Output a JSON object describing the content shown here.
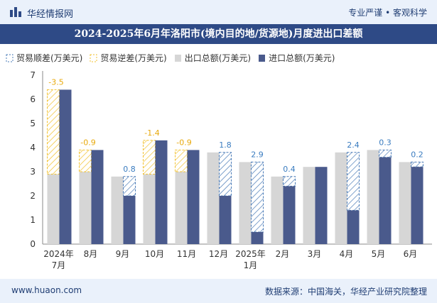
{
  "header": {
    "brand": "华经情报网",
    "tagline": "专业严谨 • 客观科学"
  },
  "title": "2024-2025年6月年洛阳市(境内目的地/货源地)月度进出口差额",
  "footer": {
    "site": "www.huaon.com",
    "source": "数据来源：中国海关，华经产业研究院整理"
  },
  "colors": {
    "export": "#d6d6d6",
    "import": "#4a5a8c",
    "surplus_border": "#4a7bb7",
    "deficit_border": "#f2c12e",
    "surplus_label": "#3a7cc0",
    "deficit_label": "#e8a90c",
    "accent": "#2e4a86"
  },
  "legend": {
    "surplus": "贸易顺差(万美元)",
    "deficit": "贸易逆差(万美元)",
    "export": "出口总额(万美元)",
    "import": "进口总额(万美元)"
  },
  "chart_data": {
    "type": "bar",
    "categories": [
      "2024年7月",
      "8月",
      "9月",
      "10月",
      "11月",
      "12月",
      "2025年1月",
      "2月",
      "3月",
      "4月",
      "5月",
      "6月"
    ],
    "series": [
      {
        "name": "出口总额(万美元)",
        "values": [
          2.9,
          3.0,
          2.8,
          2.9,
          3.0,
          3.8,
          3.4,
          2.8,
          3.2,
          3.8,
          3.9,
          3.4
        ]
      },
      {
        "name": "进口总额(万美元)",
        "values": [
          6.4,
          3.9,
          2.0,
          4.3,
          3.9,
          2.0,
          0.5,
          2.4,
          3.2,
          1.4,
          3.6,
          3.2
        ]
      }
    ],
    "balance_labels": [
      "-3.5",
      "-0.9",
      "0.8",
      "-1.4",
      "-0.9",
      "1.8",
      "2.9",
      "0.4",
      "",
      "2.4",
      "0.3",
      "0.2"
    ],
    "ylim": [
      0,
      7
    ],
    "yticks": [
      0,
      1,
      2,
      3,
      4,
      5,
      6,
      7
    ],
    "grid": false
  }
}
